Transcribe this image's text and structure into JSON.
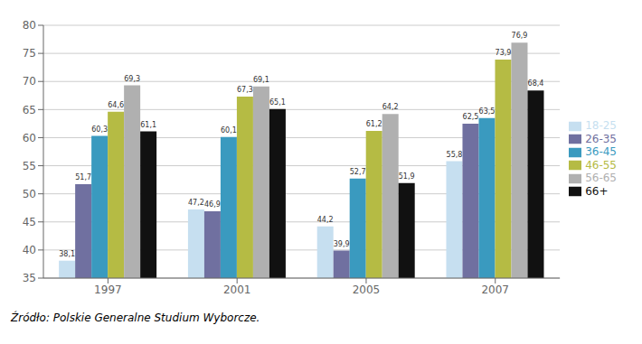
{
  "chart_data": {
    "type": "bar",
    "categories": [
      "1997",
      "2001",
      "2005",
      "2007"
    ],
    "series": [
      {
        "name": "18-25",
        "color": "#c6dff0",
        "values": [
          38.1,
          47.2,
          44.2,
          55.8
        ],
        "value_labels": [
          "38,1",
          "47,2",
          "44,2",
          "55,8"
        ]
      },
      {
        "name": "26-35",
        "color": "#7070a0",
        "values": [
          51.7,
          46.9,
          39.9,
          62.5
        ],
        "value_labels": [
          "51,7",
          "46,9",
          "39,9",
          "62,5"
        ]
      },
      {
        "name": "36-45",
        "color": "#3a9abf",
        "values": [
          60.3,
          60.1,
          52.7,
          63.5
        ],
        "value_labels": [
          "60,3",
          "60,1",
          "52,7",
          "63,5"
        ]
      },
      {
        "name": "46-55",
        "color": "#b5bb44",
        "values": [
          64.6,
          67.3,
          61.2,
          73.9
        ],
        "value_labels": [
          "64,6",
          "67,3",
          "61,2",
          "73,9"
        ]
      },
      {
        "name": "56-65",
        "color": "#b0b0b0",
        "values": [
          69.3,
          69.1,
          64.2,
          76.9
        ],
        "value_labels": [
          "69,3",
          "69,1",
          "64,2",
          "76,9"
        ]
      },
      {
        "name": "66+",
        "color": "#111111",
        "values": [
          61.1,
          65.1,
          51.9,
          68.4
        ],
        "value_labels": [
          "61,1",
          "65,1",
          "51,9",
          "68,4"
        ]
      }
    ],
    "ylim": [
      35,
      80
    ],
    "yticks": [
      35,
      40,
      45,
      50,
      55,
      60,
      65,
      70,
      75,
      80
    ],
    "grid": true,
    "legend": "right",
    "data_labels": true,
    "annotations": [
      "Źródło: Polskie Generalne Studium Wyborcze."
    ]
  }
}
